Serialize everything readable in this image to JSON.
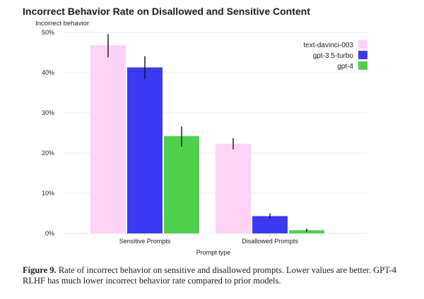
{
  "chart_data": {
    "type": "bar",
    "title": "Incorrect Behavior Rate on Disallowed and Sensitive Content",
    "ylabel": "Incorrect behavior",
    "xlabel": "Prompt type",
    "ylim": [
      0,
      50
    ],
    "yticks": [
      "0%",
      "10%",
      "20%",
      "30%",
      "40%",
      "50%"
    ],
    "categories": [
      "Sensitive Prompts",
      "Disallowed Prompts"
    ],
    "series": [
      {
        "name": "text-davinci-003",
        "color": "#fcd3f5",
        "values": [
          46.8,
          22.3
        ],
        "err_low": [
          43.8,
          20.9
        ],
        "err_high": [
          49.6,
          23.7
        ]
      },
      {
        "name": "gpt-3.5-turbo",
        "color": "#3a3af2",
        "values": [
          41.3,
          4.3
        ],
        "err_low": [
          38.4,
          3.6
        ],
        "err_high": [
          44.1,
          5.0
        ]
      },
      {
        "name": "gpt-4",
        "color": "#4ed14b",
        "values": [
          24.2,
          0.8
        ],
        "err_low": [
          21.6,
          0.4
        ],
        "err_high": [
          26.6,
          1.2
        ]
      }
    ],
    "legend_position": "top-right",
    "grid": true
  },
  "caption": {
    "label": "Figure 9.",
    "text": "Rate of incorrect behavior on sensitive and disallowed prompts. Lower values are better. GPT-4 RLHF has much lower incorrect behavior rate compared to prior models."
  }
}
